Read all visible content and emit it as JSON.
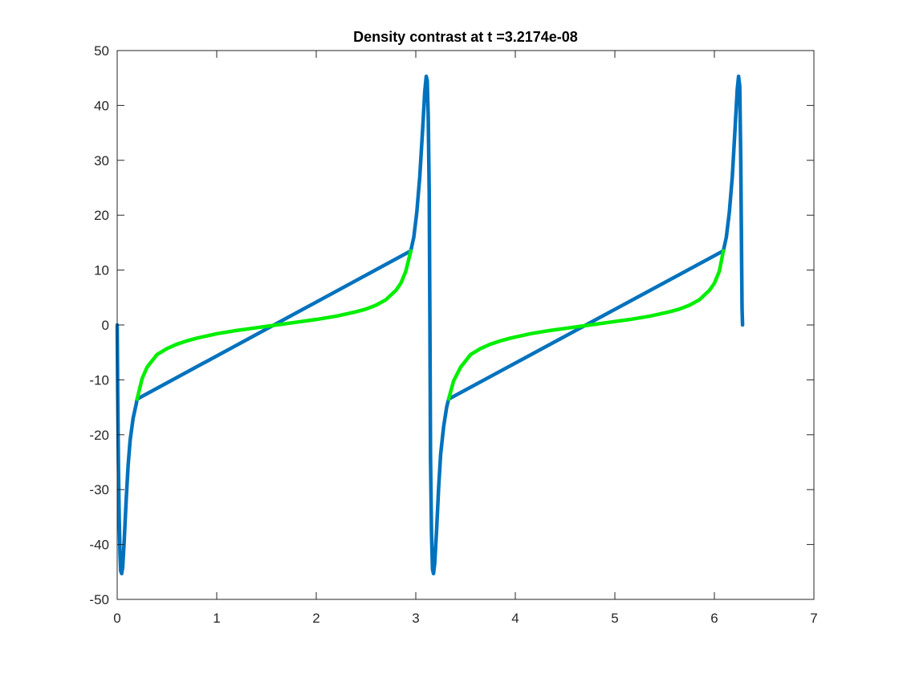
{
  "chart_data": {
    "type": "line",
    "title": "Density contrast at t =3.2174e-08",
    "xlabel": "",
    "ylabel": "",
    "xlim": [
      0,
      7
    ],
    "ylim": [
      -50,
      50
    ],
    "xticks": [
      0,
      1,
      2,
      3,
      4,
      5,
      6,
      7
    ],
    "yticks": [
      -50,
      -40,
      -30,
      -20,
      -10,
      0,
      10,
      20,
      30,
      40,
      50
    ],
    "xtick_labels": [
      "0",
      "1",
      "2",
      "3",
      "4",
      "5",
      "6",
      "7"
    ],
    "ytick_labels": [
      "-50",
      "-40",
      "-30",
      "-20",
      "-10",
      "0",
      "10",
      "20",
      "30",
      "40",
      "50"
    ],
    "grid": false,
    "legend": "none",
    "series": [
      {
        "color": "#0072BD",
        "points": [
          [
            0.0,
            0.0
          ],
          [
            0.005,
            -12.0
          ],
          [
            0.012,
            -25.0
          ],
          [
            0.02,
            -35.0
          ],
          [
            0.028,
            -41.5
          ],
          [
            0.035,
            -44.8
          ],
          [
            0.045,
            -45.3
          ],
          [
            0.055,
            -44.2
          ],
          [
            0.07,
            -39.5
          ],
          [
            0.09,
            -32.0
          ],
          [
            0.11,
            -25.5
          ],
          [
            0.13,
            -21.0
          ],
          [
            0.16,
            -17.0
          ],
          [
            0.19,
            -14.5
          ],
          [
            0.2,
            -13.5
          ],
          [
            2.95,
            13.5
          ],
          [
            2.98,
            16.0
          ],
          [
            3.01,
            20.5
          ],
          [
            3.04,
            27.0
          ],
          [
            3.07,
            36.0
          ],
          [
            3.09,
            42.5
          ],
          [
            3.105,
            45.3
          ],
          [
            3.115,
            44.5
          ],
          [
            3.125,
            38.0
          ],
          [
            3.135,
            24.0
          ],
          [
            3.142,
            0.0
          ],
          [
            3.148,
            -24.0
          ],
          [
            3.158,
            -38.0
          ],
          [
            3.168,
            -44.5
          ],
          [
            3.178,
            -45.3
          ],
          [
            3.19,
            -43.5
          ],
          [
            3.21,
            -37.0
          ],
          [
            3.23,
            -29.5
          ],
          [
            3.25,
            -23.5
          ],
          [
            3.28,
            -18.5
          ],
          [
            3.31,
            -15.0
          ],
          [
            3.33,
            -13.5
          ],
          [
            6.09,
            13.5
          ],
          [
            6.12,
            16.0
          ],
          [
            6.15,
            20.5
          ],
          [
            6.18,
            27.0
          ],
          [
            6.21,
            36.5
          ],
          [
            6.23,
            43.0
          ],
          [
            6.243,
            45.3
          ],
          [
            6.255,
            43.5
          ],
          [
            6.265,
            30.0
          ],
          [
            6.272,
            15.0
          ],
          [
            6.278,
            3.0
          ],
          [
            6.283,
            0.0
          ]
        ]
      },
      {
        "color": "#00EE00",
        "points": [
          [
            0.2,
            -13.5
          ],
          [
            0.25,
            -9.8
          ],
          [
            0.3,
            -7.7
          ],
          [
            0.4,
            -5.4
          ],
          [
            0.5,
            -4.3
          ],
          [
            0.6,
            -3.5
          ],
          [
            0.7,
            -2.9
          ],
          [
            0.8,
            -2.4
          ],
          [
            0.9,
            -2.0
          ],
          [
            1.0,
            -1.6
          ],
          [
            1.2,
            -1.0
          ],
          [
            1.4,
            -0.5
          ],
          [
            1.6,
            0.0
          ],
          [
            1.8,
            0.5
          ],
          [
            2.0,
            1.0
          ],
          [
            2.2,
            1.6
          ],
          [
            2.4,
            2.4
          ],
          [
            2.5,
            2.9
          ],
          [
            2.6,
            3.6
          ],
          [
            2.7,
            4.6
          ],
          [
            2.8,
            6.3
          ],
          [
            2.85,
            7.6
          ],
          [
            2.9,
            9.8
          ],
          [
            2.95,
            13.5
          ]
        ]
      },
      {
        "color": "#00EE00",
        "points": [
          [
            3.33,
            -13.5
          ],
          [
            3.38,
            -10.2
          ],
          [
            3.45,
            -7.7
          ],
          [
            3.55,
            -5.4
          ],
          [
            3.65,
            -4.3
          ],
          [
            3.75,
            -3.5
          ],
          [
            3.85,
            -2.9
          ],
          [
            3.95,
            -2.4
          ],
          [
            4.05,
            -2.0
          ],
          [
            4.15,
            -1.6
          ],
          [
            4.35,
            -1.0
          ],
          [
            4.55,
            -0.5
          ],
          [
            4.75,
            0.0
          ],
          [
            4.95,
            0.5
          ],
          [
            5.15,
            1.0
          ],
          [
            5.35,
            1.6
          ],
          [
            5.55,
            2.4
          ],
          [
            5.65,
            2.9
          ],
          [
            5.75,
            3.6
          ],
          [
            5.85,
            4.6
          ],
          [
            5.95,
            6.3
          ],
          [
            6.0,
            7.6
          ],
          [
            6.05,
            9.8
          ],
          [
            6.09,
            13.5
          ]
        ]
      }
    ]
  }
}
